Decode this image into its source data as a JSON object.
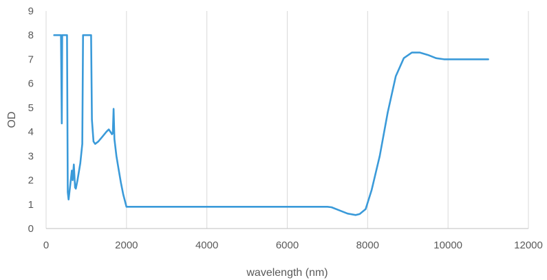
{
  "chart_data": {
    "type": "line",
    "title": "",
    "xlabel": "wavelength (nm)",
    "ylabel": "OD",
    "xlim": [
      0,
      12000
    ],
    "ylim": [
      0,
      9
    ],
    "xticks": [
      0,
      2000,
      4000,
      6000,
      8000,
      10000,
      12000
    ],
    "yticks": [
      0,
      1,
      2,
      3,
      4,
      5,
      6,
      7,
      8,
      9
    ],
    "grid": {
      "vertical": true,
      "horizontal": false
    },
    "legend": "none",
    "colors": {
      "series": "#3a9ad9",
      "grid": "#d9d9d9",
      "text": "#595959"
    },
    "series": [
      {
        "points": [
          [
            200,
            8.0
          ],
          [
            370,
            8.0
          ],
          [
            390,
            4.35
          ],
          [
            400,
            8.0
          ],
          [
            520,
            8.0
          ],
          [
            540,
            1.5
          ],
          [
            560,
            1.2
          ],
          [
            600,
            1.8
          ],
          [
            640,
            2.4
          ],
          [
            660,
            2.0
          ],
          [
            690,
            2.65
          ],
          [
            720,
            1.7
          ],
          [
            740,
            1.65
          ],
          [
            780,
            2.0
          ],
          [
            850,
            2.7
          ],
          [
            900,
            3.5
          ],
          [
            920,
            8.0
          ],
          [
            1120,
            8.0
          ],
          [
            1140,
            4.5
          ],
          [
            1180,
            3.6
          ],
          [
            1220,
            3.5
          ],
          [
            1300,
            3.6
          ],
          [
            1400,
            3.8
          ],
          [
            1500,
            4.0
          ],
          [
            1560,
            4.1
          ],
          [
            1600,
            4.0
          ],
          [
            1640,
            3.9
          ],
          [
            1660,
            3.95
          ],
          [
            1680,
            4.95
          ],
          [
            1700,
            3.7
          ],
          [
            1750,
            3.0
          ],
          [
            1800,
            2.5
          ],
          [
            1860,
            1.9
          ],
          [
            1920,
            1.4
          ],
          [
            2000,
            0.9
          ],
          [
            3000,
            0.9
          ],
          [
            4000,
            0.9
          ],
          [
            5000,
            0.9
          ],
          [
            6000,
            0.9
          ],
          [
            7000,
            0.9
          ],
          [
            7100,
            0.88
          ],
          [
            7300,
            0.75
          ],
          [
            7500,
            0.62
          ],
          [
            7700,
            0.56
          ],
          [
            7800,
            0.6
          ],
          [
            7950,
            0.8
          ],
          [
            8100,
            1.6
          ],
          [
            8300,
            3.0
          ],
          [
            8500,
            4.8
          ],
          [
            8700,
            6.3
          ],
          [
            8900,
            7.05
          ],
          [
            9100,
            7.28
          ],
          [
            9300,
            7.28
          ],
          [
            9500,
            7.18
          ],
          [
            9700,
            7.05
          ],
          [
            9900,
            7.0
          ],
          [
            10200,
            7.0
          ],
          [
            10600,
            7.0
          ],
          [
            11000,
            7.0
          ]
        ]
      }
    ]
  }
}
